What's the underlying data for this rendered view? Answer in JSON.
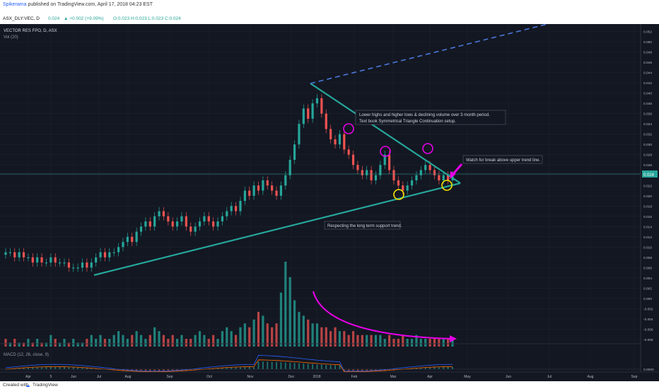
{
  "header": {
    "author": "Spikerama",
    "published": "published on TradingView.com, April 17, 2018 04:23 EST"
  },
  "symbol_bar": {
    "symbol": "ASX_DLY:VEC, D",
    "last": "0.024",
    "change": "▲ +0.002 (+9.09%)",
    "ohlc": "O:0.023  H:0.023  L:0.023  C:0.024"
  },
  "legend": {
    "instrument": "VECTOR RES FPO, D, ASX",
    "volume": "Vol (20)",
    "macd": "MACD (12, 26, close, 9)"
  },
  "footer": {
    "created_with": "Created with",
    "brand": "TradingView"
  },
  "colors": {
    "up": "#26a69a",
    "down": "#ef5350",
    "trendline": "#26a69a",
    "dashed_projection": "#4a78d9",
    "magenta": "#e600e6",
    "yellow": "#f5e400",
    "price_line": "#26a69a"
  },
  "chart_data": [
    {
      "type": "candlestick",
      "title": "VECTOR RES FPO, D, ASX",
      "x_ticks": [
        "Apr",
        "5",
        "Jun",
        "Jul",
        "Aug",
        "Sep",
        "Oct",
        "Nov",
        "Dec",
        "2018",
        "Feb",
        "Mar",
        "Apr",
        "May",
        "Jun",
        "Jul",
        "Aug",
        "Sep"
      ],
      "y_ticks": [
        "0.054",
        "0.052",
        "0.050",
        "0.048",
        "0.046",
        "0.044",
        "0.042",
        "0.040",
        "0.038",
        "0.036",
        "0.034",
        "0.032",
        "0.030",
        "0.028",
        "0.026",
        "0.024",
        "0.022",
        "0.020",
        "0.018",
        "0.016",
        "0.014",
        "0.012",
        "0.010",
        "0.008",
        "0.006",
        "0.004",
        "0.002",
        "0.000",
        "-0.002",
        "-0.004",
        "-0.006",
        "-0.008"
      ],
      "ylim": [
        -0.0095,
        0.055
      ],
      "last_price": "0.024",
      "approx_closes": [
        0.009,
        0.009,
        0.008,
        0.009,
        0.008,
        0.008,
        0.007,
        0.008,
        0.007,
        0.007,
        0.008,
        0.007,
        0.007,
        0.007,
        0.006,
        0.006,
        0.006,
        0.007,
        0.006,
        0.007,
        0.008,
        0.009,
        0.008,
        0.009,
        0.009,
        0.01,
        0.011,
        0.012,
        0.011,
        0.013,
        0.014,
        0.015,
        0.014,
        0.016,
        0.017,
        0.016,
        0.015,
        0.014,
        0.015,
        0.016,
        0.014,
        0.013,
        0.014,
        0.015,
        0.016,
        0.015,
        0.014,
        0.015,
        0.016,
        0.017,
        0.018,
        0.017,
        0.019,
        0.021,
        0.02,
        0.022,
        0.021,
        0.023,
        0.022,
        0.021,
        0.02,
        0.022,
        0.024,
        0.027,
        0.03,
        0.034,
        0.037,
        0.035,
        0.038,
        0.039,
        0.036,
        0.033,
        0.031,
        0.03,
        0.032,
        0.029,
        0.028,
        0.026,
        0.025,
        0.024,
        0.025,
        0.023,
        0.024,
        0.026,
        0.028,
        0.025,
        0.023,
        0.022,
        0.021,
        0.022,
        0.023,
        0.024,
        0.025,
        0.026,
        0.025,
        0.024,
        0.023,
        0.024,
        0.023,
        0.024
      ],
      "volume_relative": [
        2,
        1,
        2,
        1,
        1,
        2,
        1,
        2,
        1,
        1,
        3,
        2,
        1,
        2,
        1,
        2,
        1,
        1,
        2,
        3,
        2,
        3,
        2,
        2,
        3,
        4,
        3,
        2,
        3,
        4,
        3,
        2,
        3,
        5,
        4,
        3,
        2,
        3,
        2,
        3,
        2,
        2,
        3,
        4,
        3,
        2,
        3,
        2,
        4,
        5,
        4,
        3,
        5,
        6,
        5,
        7,
        9,
        8,
        6,
        5,
        6,
        14,
        22,
        18,
        12,
        9,
        8,
        7,
        6,
        6,
        5,
        5,
        4,
        5,
        4,
        4,
        3,
        4,
        3,
        3,
        3,
        3,
        3,
        3,
        2,
        3,
        2,
        2,
        3,
        2,
        2,
        3,
        2,
        2,
        2,
        2,
        2,
        2,
        2,
        2
      ],
      "series": [
        {
          "name": "MACD (12, 26, close, 9)"
        }
      ]
    }
  ],
  "annotations": {
    "triangle_note_line1": "Lower highs and higher lows & declining volume over 3 month period.",
    "triangle_note_line2": "Text book Symmetrical Triangle Continuation setup.",
    "breakout_note": "Watch for break above upper trend line.",
    "support_note": "Respecting the long term support trend."
  }
}
